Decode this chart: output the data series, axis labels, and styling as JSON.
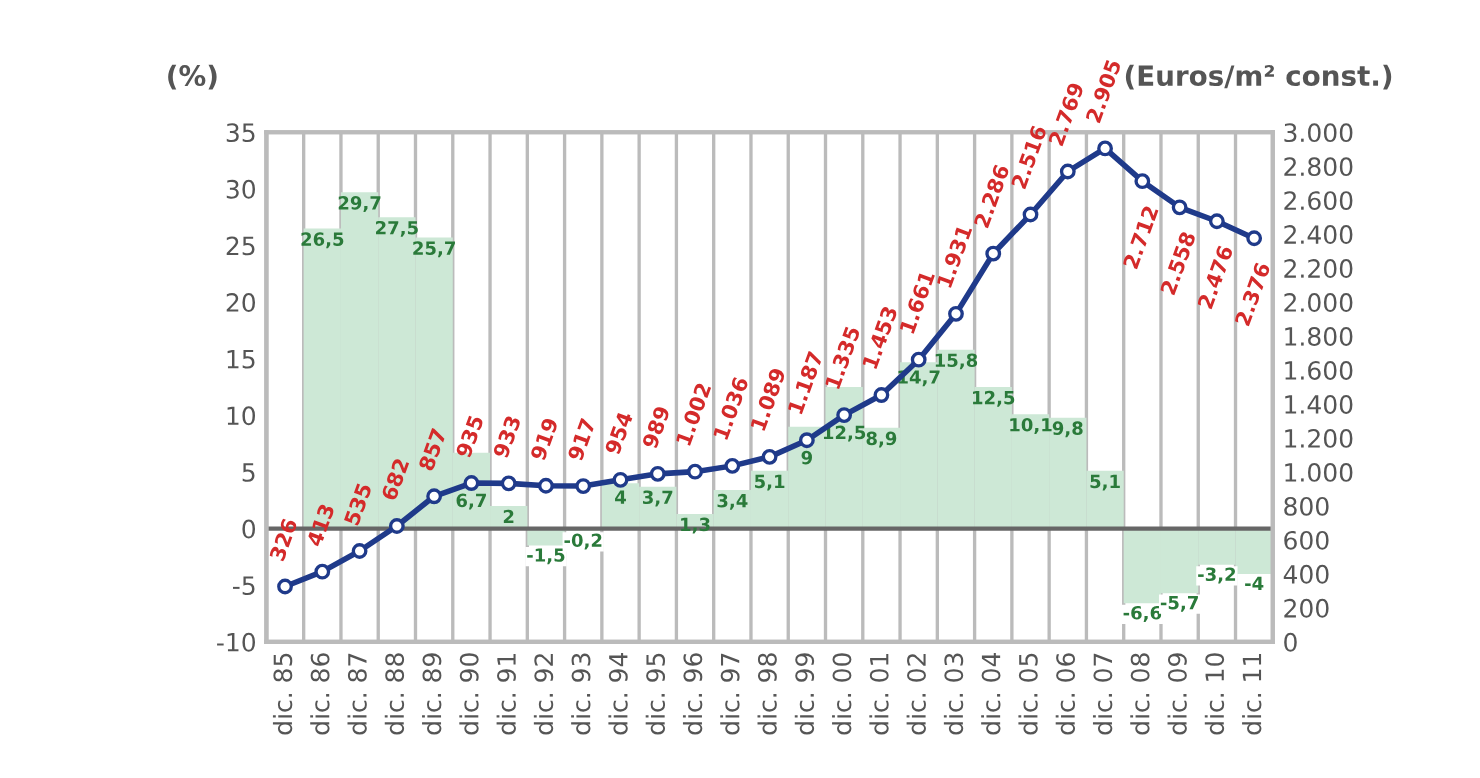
{
  "chart_data": {
    "type": "bar",
    "categories": [
      "dic. 85",
      "dic. 86",
      "dic. 87",
      "dic. 88",
      "dic. 89",
      "dic. 90",
      "dic. 91",
      "dic. 92",
      "dic. 93",
      "dic. 94",
      "dic. 95",
      "dic. 96",
      "dic. 97",
      "dic. 98",
      "dic. 99",
      "dic. 00",
      "dic. 01",
      "dic. 02",
      "dic. 03",
      "dic. 04",
      "dic. 05",
      "dic. 06",
      "dic. 07",
      "dic. 08",
      "dic. 09",
      "dic. 10",
      "dic. 11"
    ],
    "ylabel": "(%)",
    "y2label": "(Euros/m² const.)",
    "series": [
      {
        "color": "#cde8d6",
        "values": [
          null,
          26.5,
          29.7,
          27.5,
          25.7,
          6.7,
          2,
          -1.5,
          -0.2,
          4,
          3.7,
          1.3,
          3.4,
          5.1,
          9,
          12.5,
          8.9,
          14.7,
          15.8,
          12.5,
          10.1,
          9.8,
          5.1,
          -6.6,
          -5.7,
          -3.2,
          -4
        ],
        "value_labels": [
          null,
          "26,5",
          "29,7",
          "27,5",
          "25,7",
          "6,7",
          "2",
          "-1,5",
          "-0,2",
          "4",
          "3,7",
          "1,3",
          "3,4",
          "5,1",
          "9",
          "12,5",
          "8,9",
          "14,7",
          "15,8",
          "12,5",
          "10,1",
          "9,8",
          "5,1",
          "-6,6",
          "-5,7",
          "-3,2",
          "-4"
        ]
      },
      {
        "type": "line",
        "axis": "y2",
        "color": "#1f3a8a",
        "marker": "circle",
        "line_style": "solid",
        "values": [
          326,
          413,
          535,
          682,
          857,
          935,
          933,
          919,
          917,
          954,
          989,
          1002,
          1036,
          1089,
          1187,
          1335,
          1453,
          1661,
          1931,
          2286,
          2516,
          2769,
          2905,
          2712,
          2558,
          2476,
          2376
        ],
        "value_labels": [
          "326",
          "413",
          "535",
          "682",
          "857",
          "935",
          "933",
          "919",
          "917",
          "954",
          "989",
          "1.002",
          "1.036",
          "1.089",
          "1.187",
          "1.335",
          "1.453",
          "1.661",
          "1.931",
          "2.286",
          "2.516",
          "2.769",
          "2.905",
          "2.712",
          "2.558",
          "2.476",
          "2.376"
        ]
      }
    ],
    "ylim": [
      -10,
      35
    ],
    "yticks": [
      -10,
      -5,
      0,
      5,
      10,
      15,
      20,
      25,
      30,
      35
    ],
    "y2lim": [
      0,
      3000
    ],
    "y2ticks": [
      0,
      200,
      400,
      {
        "value": 600,
        "label": "600"
      },
      {
        "value": 800,
        "label": "800"
      },
      {
        "value": 1000,
        "label": "1.000"
      },
      {
        "value": 1200,
        "label": "1.200"
      },
      {
        "value": 1400,
        "label": "1.400"
      },
      {
        "value": 1600,
        "label": "1.600"
      },
      {
        "value": 1800,
        "label": "1.800"
      },
      {
        "value": 2000,
        "label": "2.000"
      },
      {
        "value": 2200,
        "label": "2.200"
      },
      {
        "value": 2400,
        "label": "2.400"
      },
      {
        "value": 2600,
        "label": "2.600"
      },
      {
        "value": 2800,
        "label": "2.800"
      },
      {
        "value": 3000,
        "label": "3.000"
      }
    ],
    "ref_lines": [
      {
        "axis": "y",
        "value": 0,
        "color": "#666666"
      }
    ],
    "grid": "x",
    "legend": false
  }
}
